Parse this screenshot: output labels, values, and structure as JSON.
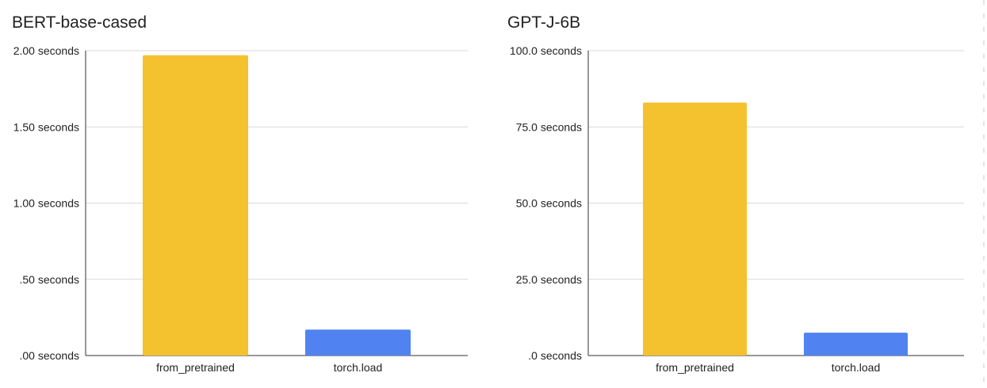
{
  "colors": {
    "from_pretrained": "#F4C12F",
    "torch_load": "#5083F1",
    "grid": "#D9D9D9",
    "axis": "#333333",
    "text": "#222222"
  },
  "chart_data": [
    {
      "type": "bar",
      "title": "BERT-base-cased",
      "categories": [
        "from_pretrained",
        "torch.load"
      ],
      "values": [
        1.97,
        0.17
      ],
      "ylim": [
        0,
        2.0
      ],
      "yticks": [
        0,
        0.5,
        1.0,
        1.5,
        2.0
      ],
      "ytick_labels": [
        ".00 seconds",
        ".50 seconds",
        "1.00 seconds",
        "1.50 seconds",
        "2.00 seconds"
      ],
      "grid": true,
      "legend": "none"
    },
    {
      "type": "bar",
      "title": "GPT-J-6B",
      "categories": [
        "from_pretrained",
        "torch.load"
      ],
      "values": [
        83.0,
        7.5
      ],
      "ylim": [
        0,
        100.0
      ],
      "yticks": [
        0,
        25,
        50,
        75,
        100
      ],
      "ytick_labels": [
        ".0 seconds",
        "25.0 seconds",
        "50.0 seconds",
        "75.0 seconds",
        "100.0 seconds"
      ],
      "grid": true,
      "legend": "none"
    }
  ]
}
